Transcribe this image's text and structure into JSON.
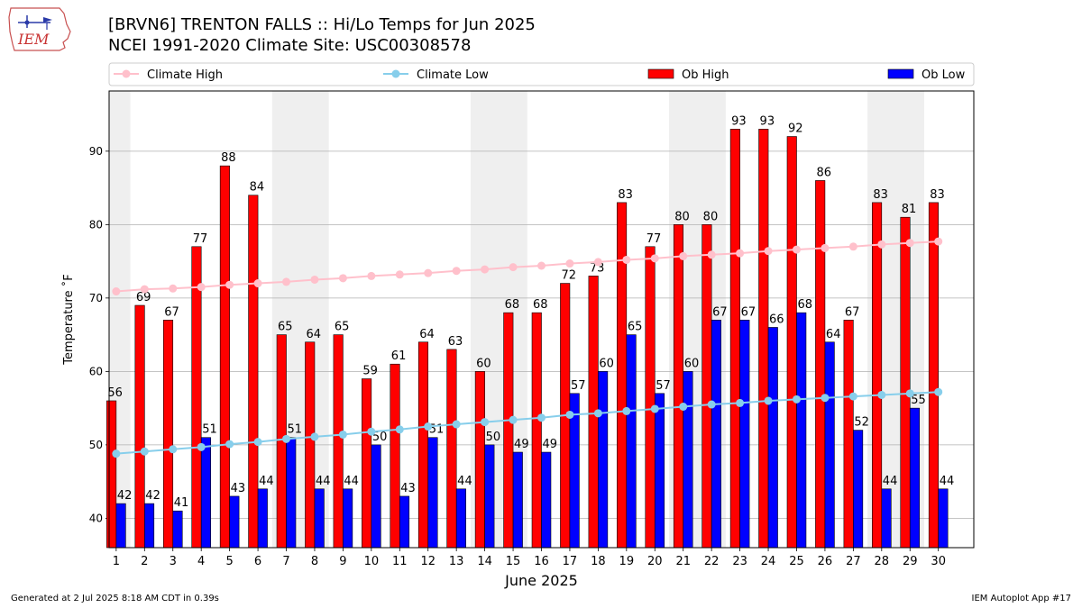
{
  "header": {
    "title": "[BRVN6] TRENTON FALLS :: Hi/Lo Temps for Jun 2025",
    "subtitle": "NCEI 1991-2020 Climate Site: USC00308578",
    "logo_text": "IEM"
  },
  "footer": {
    "generated": "Generated at 2 Jul 2025 8:18 AM CDT in 0.39s",
    "app": "IEM Autoplot App #17"
  },
  "chart_data": {
    "type": "bar",
    "xlabel": "June 2025",
    "ylabel": "Temperature ˚F",
    "ylim": [
      36,
      98.2
    ],
    "yticks": [
      40,
      50,
      60,
      70,
      80,
      90
    ],
    "grid": true,
    "legend_position": "top",
    "categories": [
      "1",
      "2",
      "3",
      "4",
      "5",
      "6",
      "7",
      "8",
      "9",
      "10",
      "11",
      "12",
      "13",
      "14",
      "15",
      "16",
      "17",
      "18",
      "19",
      "20",
      "21",
      "22",
      "23",
      "24",
      "25",
      "26",
      "27",
      "28",
      "29",
      "30"
    ],
    "weekend_bands": [
      [
        1,
        1
      ],
      [
        7,
        8
      ],
      [
        14,
        15
      ],
      [
        21,
        22
      ],
      [
        28,
        29
      ]
    ],
    "series": [
      {
        "name": "Ob High",
        "kind": "bar",
        "color": "#ff0000",
        "values": [
          56,
          69,
          67,
          77,
          88,
          84,
          65,
          64,
          65,
          59,
          61,
          64,
          63,
          60,
          68,
          68,
          72,
          73,
          83,
          77,
          80,
          80,
          93,
          93,
          92,
          86,
          67,
          83,
          81,
          83
        ]
      },
      {
        "name": "Ob Low",
        "kind": "bar",
        "color": "#0000ff",
        "values": [
          42,
          42,
          41,
          51,
          43,
          44,
          51,
          44,
          44,
          50,
          43,
          51,
          44,
          50,
          49,
          49,
          57,
          60,
          65,
          57,
          60,
          67,
          67,
          66,
          68,
          64,
          52,
          44,
          55,
          44
        ]
      },
      {
        "name": "Climate High",
        "kind": "line",
        "color": "#ffc0cb",
        "values": [
          70.9,
          71.2,
          71.3,
          71.5,
          71.8,
          72.0,
          72.2,
          72.5,
          72.7,
          73.0,
          73.2,
          73.4,
          73.7,
          73.9,
          74.2,
          74.4,
          74.7,
          74.9,
          75.2,
          75.4,
          75.7,
          75.9,
          76.1,
          76.4,
          76.6,
          76.8,
          77.0,
          77.3,
          77.5,
          77.7
        ]
      },
      {
        "name": "Climate Low",
        "kind": "line",
        "color": "#87ceeb",
        "values": [
          48.8,
          49.1,
          49.4,
          49.7,
          50.1,
          50.4,
          50.8,
          51.1,
          51.4,
          51.8,
          52.1,
          52.5,
          52.8,
          53.1,
          53.4,
          53.7,
          54.1,
          54.3,
          54.6,
          54.9,
          55.2,
          55.5,
          55.7,
          56.0,
          56.2,
          56.4,
          56.6,
          56.8,
          57.0,
          57.2
        ]
      }
    ]
  }
}
